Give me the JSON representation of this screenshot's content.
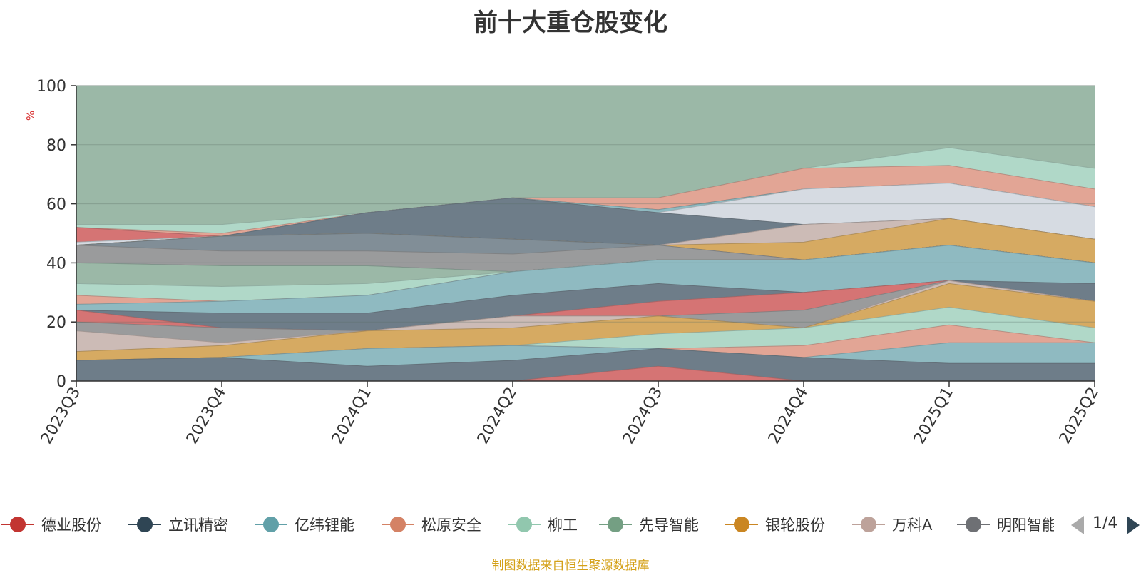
{
  "title": "前十大重仓股变化",
  "source_note": "制图数据来自恒生聚源数据库",
  "legend": {
    "items": [
      {
        "name": "德业股份",
        "color": "#c23531"
      },
      {
        "name": "立讯精密",
        "color": "#2f4554"
      },
      {
        "name": "亿纬锂能",
        "color": "#61a0a8"
      },
      {
        "name": "松原安全",
        "color": "#d48265"
      },
      {
        "name": "柳工",
        "color": "#91c7ae"
      },
      {
        "name": "先导智能",
        "color": "#749f83"
      },
      {
        "name": "银轮股份",
        "color": "#ca8622"
      },
      {
        "name": "万科A",
        "color": "#bda29a"
      },
      {
        "name": "明阳智能",
        "color": "#6e7074"
      }
    ],
    "page_text": "1/4"
  },
  "chart_data": {
    "type": "area",
    "title": "前十大重仓股变化",
    "ylabel": "%",
    "xlabel": "",
    "ylim": [
      0,
      100
    ],
    "yticks": [
      0,
      20,
      40,
      60,
      80,
      100
    ],
    "categories": [
      "2023Q3",
      "2023Q4",
      "2024Q1",
      "2024Q2",
      "2024Q3",
      "2024Q4",
      "2025Q1",
      "2025Q2"
    ],
    "grid": true,
    "legend_position": "bottom",
    "layers": [
      {
        "color": "#9bb8a7",
        "upper": [
          100,
          100,
          100,
          100,
          100,
          100,
          100,
          100
        ]
      },
      {
        "color": "#b0d8c8",
        "upper": [
          53,
          53,
          57,
          62,
          62,
          72,
          79,
          72
        ]
      },
      {
        "color": "#e2a595",
        "upper": [
          52,
          50,
          57,
          62,
          62,
          72,
          73,
          65
        ]
      },
      {
        "color": "#d57474",
        "upper": [
          52,
          49,
          57,
          62,
          58,
          65,
          67,
          59
        ]
      },
      {
        "color": "#8fbac1",
        "upper": [
          47,
          49,
          57,
          62,
          58,
          65,
          67,
          59
        ]
      },
      {
        "color": "#d6dbe2",
        "upper": [
          47,
          49,
          57,
          58,
          57,
          65,
          67,
          59
        ]
      },
      {
        "color": "#6e7d89",
        "upper": [
          46,
          49,
          57,
          62,
          57,
          53,
          55,
          48
        ]
      },
      {
        "color": "#ccbbb6",
        "upper": [
          46,
          49,
          50,
          48,
          46,
          53,
          55,
          48
        ]
      },
      {
        "color": "#d6aa62",
        "upper": [
          46,
          49,
          50,
          48,
          46,
          47,
          55,
          48
        ]
      },
      {
        "color": "#818e97",
        "upper": [
          46,
          49,
          50,
          48,
          46,
          41,
          46,
          40
        ]
      },
      {
        "color": "#9a9b9c",
        "upper": [
          46,
          44,
          44,
          43,
          46,
          41,
          46,
          40
        ]
      },
      {
        "color": "#8fbac1",
        "upper": [
          40,
          39,
          39,
          37,
          41,
          41,
          46,
          40
        ]
      },
      {
        "color": "#9bb8a7",
        "upper": [
          40,
          39,
          39,
          37,
          41,
          41,
          46,
          40
        ]
      },
      {
        "color": "#b0d8c8",
        "upper": [
          33,
          32,
          33,
          37,
          41,
          41,
          46,
          40
        ]
      },
      {
        "color": "#e2a595",
        "upper": [
          29,
          27,
          29,
          37,
          41,
          41,
          46,
          40
        ]
      },
      {
        "color": "#8fbac1",
        "upper": [
          26,
          27,
          29,
          37,
          41,
          41,
          46,
          40
        ]
      },
      {
        "color": "#6e7d89",
        "upper": [
          24,
          23,
          23,
          29,
          33,
          30,
          34,
          33
        ]
      },
      {
        "color": "#d57474",
        "upper": [
          24,
          18,
          17,
          22,
          27,
          30,
          34,
          27
        ]
      },
      {
        "color": "#9a9b9c",
        "upper": [
          20,
          18,
          17,
          22,
          22,
          24,
          34,
          27
        ]
      },
      {
        "color": "#ccbbb6",
        "upper": [
          17,
          13,
          17,
          22,
          22,
          18,
          34,
          27
        ]
      },
      {
        "color": "#d6aa62",
        "upper": [
          10,
          12,
          17,
          18,
          22,
          18,
          33,
          27
        ]
      },
      {
        "color": "#b0d8c8",
        "upper": [
          7,
          8,
          11,
          12,
          16,
          18,
          25,
          18
        ]
      },
      {
        "color": "#e2a595",
        "upper": [
          7,
          8,
          11,
          12,
          11,
          12,
          19,
          13
        ]
      },
      {
        "color": "#8fbac1",
        "upper": [
          7,
          8,
          11,
          12,
          11,
          8,
          13,
          13
        ]
      },
      {
        "color": "#6e7d89",
        "upper": [
          7,
          8,
          5,
          7,
          11,
          8,
          6,
          6
        ]
      },
      {
        "color": "#d57474",
        "upper": [
          0,
          0,
          0,
          0,
          5,
          0,
          0,
          0
        ]
      }
    ]
  }
}
